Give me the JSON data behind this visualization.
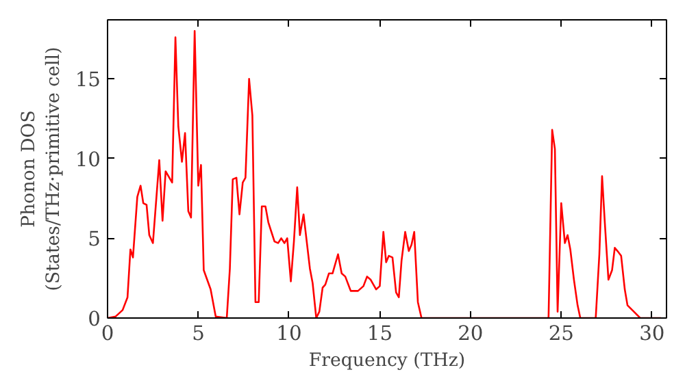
{
  "chart_data": {
    "type": "line",
    "xlabel": "Frequency (THz)",
    "ylabel": "Phonon DOS\n(States/THz·primitive cell)",
    "xlim": [
      0,
      30.8
    ],
    "ylim": [
      0,
      18.7
    ],
    "xticks": [
      0,
      5,
      10,
      15,
      20,
      25,
      30
    ],
    "yticks": [
      0,
      5,
      10,
      15
    ],
    "grid": false,
    "series": [
      {
        "color": "#ff0000",
        "x": [
          0,
          0.45,
          0.83,
          1.1,
          1.26,
          1.4,
          1.64,
          1.82,
          1.97,
          2.15,
          2.3,
          2.5,
          2.85,
          3.03,
          3.2,
          3.56,
          3.74,
          3.9,
          4.1,
          4.27,
          4.45,
          4.6,
          4.8,
          5.0,
          5.15,
          5.3,
          5.68,
          5.96,
          6.57,
          6.74,
          6.9,
          7.1,
          7.27,
          7.45,
          7.6,
          7.8,
          7.98,
          8.15,
          8.33,
          8.5,
          8.7,
          8.86,
          9.0,
          9.2,
          9.4,
          9.57,
          9.75,
          9.9,
          10.1,
          10.27,
          10.45,
          10.6,
          10.8,
          11.15,
          11.3,
          11.5,
          11.67,
          11.85,
          12.0,
          12.2,
          12.4,
          12.7,
          12.9,
          13.1,
          13.4,
          13.8,
          14.1,
          14.3,
          14.5,
          14.8,
          15.0,
          15.2,
          15.35,
          15.5,
          15.7,
          15.9,
          16.05,
          16.2,
          16.4,
          16.6,
          16.75,
          16.9,
          17.1,
          17.3,
          24.3,
          24.5,
          24.65,
          24.8,
          25.0,
          25.2,
          25.35,
          25.5,
          25.7,
          25.9,
          26.05,
          26.9,
          27.1,
          27.25,
          27.4,
          27.6,
          27.8,
          27.95,
          28.1,
          28.3,
          28.5,
          28.65,
          29.0,
          29.35,
          30.5
        ],
        "values": [
          0,
          0.1,
          0.5,
          1.3,
          4.3,
          3.8,
          7.6,
          8.3,
          7.2,
          7.1,
          5.2,
          4.7,
          9.9,
          6.1,
          9.2,
          8.5,
          17.6,
          12.0,
          9.8,
          11.6,
          6.7,
          6.3,
          18.0,
          8.3,
          9.6,
          3.0,
          1.8,
          0.1,
          0,
          3.1,
          8.7,
          8.8,
          6.5,
          8.5,
          8.8,
          15.0,
          12.7,
          1.0,
          1.0,
          7.0,
          7.0,
          6.0,
          5.5,
          4.8,
          4.7,
          5.0,
          4.7,
          5.0,
          2.3,
          4.8,
          8.2,
          5.2,
          6.5,
          3.1,
          2.2,
          0,
          0.4,
          1.9,
          2.1,
          2.8,
          2.8,
          4.0,
          2.8,
          2.6,
          1.7,
          1.7,
          2.0,
          2.6,
          2.4,
          1.8,
          2.0,
          5.4,
          3.5,
          3.9,
          3.8,
          1.6,
          1.3,
          3.6,
          5.4,
          4.2,
          4.6,
          5.4,
          1.0,
          0,
          0,
          11.8,
          10.6,
          0.4,
          7.2,
          4.7,
          5.2,
          4.3,
          2.4,
          0.8,
          0,
          0,
          4.0,
          8.9,
          6.0,
          2.4,
          3.0,
          4.4,
          4.2,
          3.9,
          1.8,
          0.8,
          0.4,
          0,
          0
        ]
      }
    ]
  }
}
